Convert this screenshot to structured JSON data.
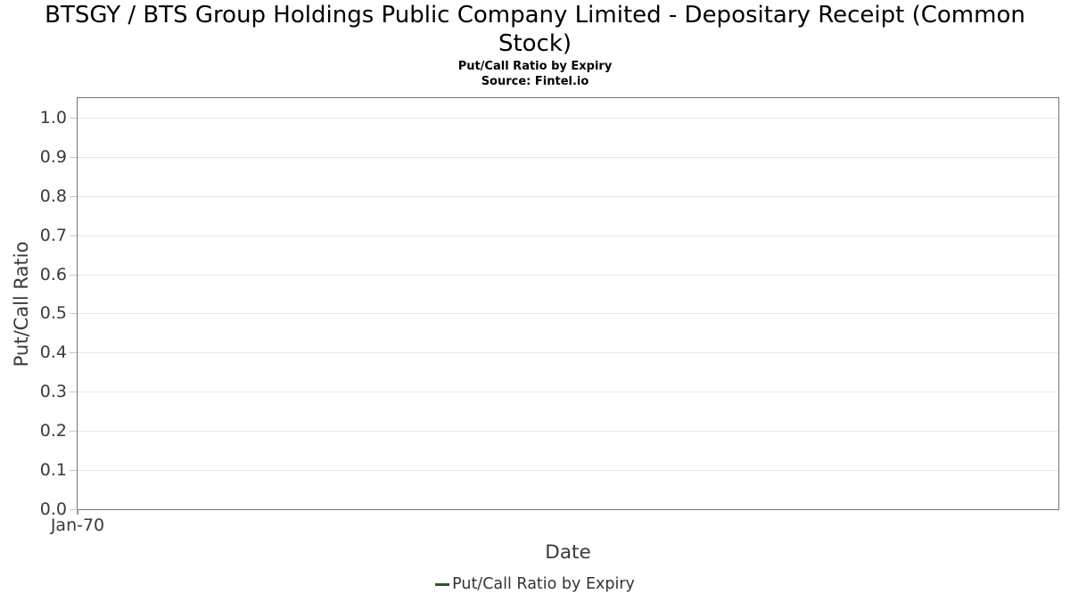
{
  "chart_data": {
    "type": "line",
    "title": "BTSGY / BTS Group Holdings Public Company Limited - Depositary Receipt (Common Stock)",
    "subtitle": "Put/Call Ratio by Expiry",
    "source": "Source: Fintel.io",
    "xlabel": "Date",
    "ylabel": "Put/Call Ratio",
    "x_tick_labels": [
      "Jan-70"
    ],
    "y_tick_labels": [
      "0.0",
      "0.1",
      "0.2",
      "0.3",
      "0.4",
      "0.5",
      "0.6",
      "0.7",
      "0.8",
      "0.9",
      "1.0"
    ],
    "ylim": [
      0,
      1.05
    ],
    "grid": true,
    "legend_position": "bottom-center",
    "series": [
      {
        "name": "Put/Call Ratio by Expiry",
        "color": "#235e2f",
        "x": [],
        "y": []
      }
    ],
    "colors": {
      "title_text": "#000000",
      "axis_text": "#3a3a3a",
      "legend_text": "#333333",
      "plot_border": "#757575",
      "gridline": "#e7e7e7",
      "y_tick": "#c9c9c9",
      "x_tick": "#9a9a9a",
      "background": "#ffffff"
    }
  }
}
